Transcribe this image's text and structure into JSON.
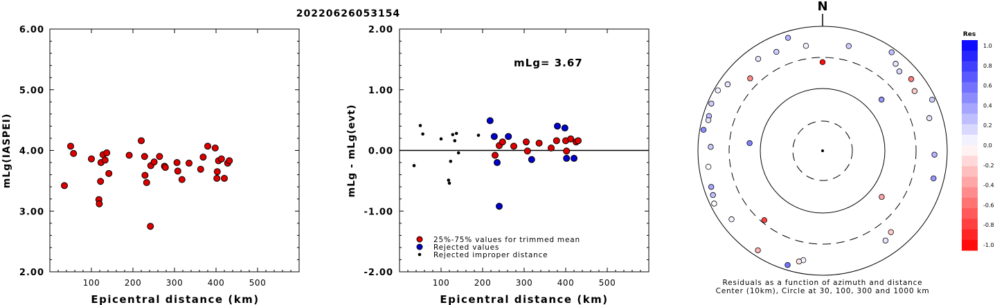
{
  "event_id": "20220626053154",
  "chart_data": [
    {
      "type": "scatter",
      "xlabel": "Epicentral distance (km)",
      "ylabel": "mLg(IASPEI)",
      "xlim": [
        0,
        600
      ],
      "ylim": [
        2.0,
        6.0
      ],
      "xticks": [
        "100",
        "200",
        "300",
        "400",
        "500"
      ],
      "yticks": [
        "2.00",
        "3.00",
        "4.00",
        "5.00",
        "6.00"
      ],
      "marker_color": "#dd0000",
      "points": [
        [
          35,
          3.42
        ],
        [
          50,
          4.07
        ],
        [
          57,
          3.95
        ],
        [
          100,
          3.86
        ],
        [
          118,
          3.19
        ],
        [
          119,
          3.12
        ],
        [
          122,
          3.49
        ],
        [
          123,
          3.8
        ],
        [
          128,
          3.93
        ],
        [
          133,
          3.84
        ],
        [
          137,
          3.96
        ],
        [
          142,
          3.62
        ],
        [
          191,
          3.92
        ],
        [
          220,
          4.16
        ],
        [
          228,
          3.9
        ],
        [
          229,
          3.59
        ],
        [
          233,
          3.47
        ],
        [
          242,
          2.75
        ],
        [
          243,
          3.75
        ],
        [
          251,
          3.81
        ],
        [
          264,
          3.9
        ],
        [
          276,
          3.74
        ],
        [
          278,
          3.72
        ],
        [
          306,
          3.8
        ],
        [
          308,
          3.66
        ],
        [
          318,
          3.52
        ],
        [
          335,
          3.79
        ],
        [
          363,
          3.69
        ],
        [
          369,
          3.89
        ],
        [
          380,
          4.07
        ],
        [
          398,
          4.04
        ],
        [
          402,
          3.54
        ],
        [
          403,
          3.65
        ],
        [
          406,
          3.83
        ],
        [
          413,
          3.86
        ],
        [
          420,
          3.54
        ],
        [
          428,
          3.79
        ],
        [
          432,
          3.83
        ]
      ]
    },
    {
      "type": "scatter",
      "xlabel": "Epicentral distance (km)",
      "ylabel": "mLg - mLg(evt)",
      "xlim": [
        0,
        600
      ],
      "ylim": [
        -2.0,
        2.0
      ],
      "xticks": [
        "100",
        "200",
        "300",
        "400",
        "500"
      ],
      "yticks": [
        "-2.00",
        "-1.00",
        "0.00",
        "1.00",
        "2.00"
      ],
      "annotation": "mLg= 3.67",
      "reference_line_y": 0.0,
      "legend": [
        {
          "label": "25%-75% values for trimmed mean",
          "color": "#dd0000"
        },
        {
          "label": "Rejected values",
          "color": "#0000cc"
        },
        {
          "label": "Rejected improper distance",
          "color": "#000000"
        }
      ],
      "series": [
        {
          "name": "25%-75% values for trimmed mean",
          "color": "#dd0000",
          "size": "large",
          "points": [
            [
              230,
              -0.08
            ],
            [
              240,
              0.08
            ],
            [
              248,
              0.14
            ],
            [
              275,
              0.07
            ],
            [
              305,
              0.14
            ],
            [
              308,
              -0.01
            ],
            [
              336,
              0.12
            ],
            [
              365,
              0.04
            ],
            [
              378,
              0.16
            ],
            [
              400,
              0.16
            ],
            [
              402,
              -0.01
            ],
            [
              412,
              0.19
            ],
            [
              425,
              0.14
            ],
            [
              430,
              0.16
            ]
          ]
        },
        {
          "name": "Rejected values",
          "color": "#0000cc",
          "size": "large",
          "points": [
            [
              218,
              0.49
            ],
            [
              228,
              0.23
            ],
            [
              235,
              -0.2
            ],
            [
              240,
              -0.92
            ],
            [
              262,
              0.23
            ],
            [
              318,
              -0.15
            ],
            [
              380,
              0.4
            ],
            [
              398,
              0.37
            ],
            [
              402,
              -0.13
            ],
            [
              420,
              -0.13
            ]
          ]
        },
        {
          "name": "Rejected improper distance",
          "color": "#000000",
          "size": "small",
          "points": [
            [
              35,
              -0.25
            ],
            [
              50,
              0.41
            ],
            [
              56,
              0.27
            ],
            [
              100,
              0.19
            ],
            [
              118,
              -0.49
            ],
            [
              120,
              -0.54
            ],
            [
              123,
              -0.18
            ],
            [
              128,
              0.26
            ],
            [
              133,
              0.16
            ],
            [
              137,
              0.28
            ],
            [
              142,
              -0.04
            ],
            [
              190,
              0.25
            ]
          ]
        }
      ]
    },
    {
      "type": "polar-scatter",
      "north_label": "N",
      "caption_line1": "Residuals as a function of azimuth and distance",
      "caption_line2": "Center (10km), Circle at 30, 100, 300 and 1000 km",
      "rings_km": [
        30,
        100,
        300,
        1000
      ],
      "stations": [
        {
          "az": 0,
          "dist_km": 280,
          "res": -0.95
        },
        {
          "az": 14,
          "dist_km": 600,
          "res": 0.2
        },
        {
          "az": -9,
          "dist_km": 560,
          "res": 0.05
        },
        {
          "az": -17,
          "dist_km": 900,
          "res": 0.3
        },
        {
          "az": -25,
          "dist_km": 630,
          "res": 0.2
        },
        {
          "az": -35,
          "dist_km": 710,
          "res": 0.1
        },
        {
          "az": -45,
          "dist_km": 480,
          "res": -0.45
        },
        {
          "az": 35,
          "dist_km": 980,
          "res": 0.25
        },
        {
          "az": 40,
          "dist_km": 750,
          "res": 0.1
        },
        {
          "az": 51,
          "dist_km": 760,
          "res": -0.5
        },
        {
          "az": 44,
          "dist_km": 660,
          "res": 0.15
        },
        {
          "az": 57,
          "dist_km": 640,
          "res": -0.2
        },
        {
          "az": 49,
          "dist_km": 190,
          "res": 0.4
        },
        {
          "az": -55,
          "dist_km": 820,
          "res": 0.1
        },
        {
          "az": -60,
          "dist_km": 1000,
          "res": 0.05
        },
        {
          "az": -73,
          "dist_km": 920,
          "res": 0.25
        },
        {
          "az": -67,
          "dist_km": 1000,
          "res": 0.2
        },
        {
          "az": -75,
          "dist_km": 900,
          "res": 0.1
        },
        {
          "az": -80,
          "dist_km": 1000,
          "res": 0.45
        },
        {
          "az": -84,
          "dist_km": 160,
          "res": 0.5
        },
        {
          "az": -88,
          "dist_km": 700,
          "res": 0.2
        },
        {
          "az": 65,
          "dist_km": 1000,
          "res": 0.2
        },
        {
          "az": 73,
          "dist_km": 690,
          "res": 0.1
        },
        {
          "az": 92,
          "dist_km": 700,
          "res": 0.3
        },
        {
          "az": -98,
          "dist_km": 800,
          "res": 0.0
        },
        {
          "az": 104,
          "dist_km": 770,
          "res": 0.4
        },
        {
          "az": -108,
          "dist_km": 860,
          "res": 0.35
        },
        {
          "az": -112,
          "dist_km": 900,
          "res": 0.25
        },
        {
          "az": -116,
          "dist_km": 990,
          "res": 0.0
        },
        {
          "az": -127,
          "dist_km": 760,
          "res": 0.05
        },
        {
          "az": 128,
          "dist_km": 170,
          "res": -0.35
        },
        {
          "az": -140,
          "dist_km": 300,
          "res": -0.75
        },
        {
          "az": 140,
          "dist_km": 560,
          "res": -0.2
        },
        {
          "az": 145,
          "dist_km": 640,
          "res": 0.1
        },
        {
          "az": -147,
          "dist_km": 920,
          "res": -0.3
        },
        {
          "az": -163,
          "dist_km": 950,
          "res": 0.55
        },
        {
          "az": -170,
          "dist_km": 680,
          "res": 0.05
        },
        {
          "az": -168,
          "dist_km": 740,
          "res": -0.1
        }
      ]
    }
  ],
  "colorbar": {
    "title": "Res",
    "ticks": [
      "1.0",
      "0.8",
      "0.6",
      "0.4",
      "0.2",
      "0.0",
      "-0.2",
      "-0.4",
      "-0.6",
      "-0.8",
      "-1.0"
    ],
    "max_color": "#0000ff",
    "min_color": "#ff0000"
  }
}
